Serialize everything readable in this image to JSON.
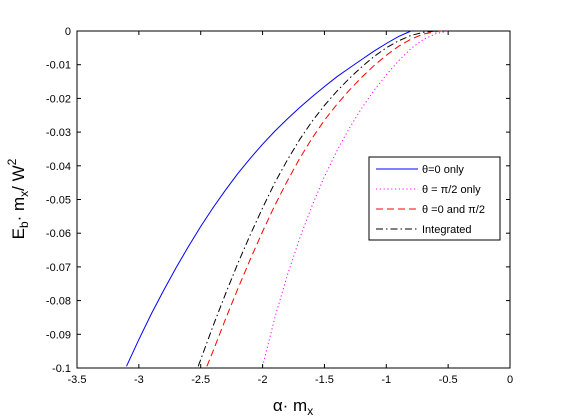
{
  "chart_data": {
    "type": "line",
    "title": "",
    "xlabel": "α· m",
    "xlabel_sub": "x",
    "ylabel": "E",
    "ylabel_sub1": "b",
    "ylabel_mid": "· m",
    "ylabel_sub2": "x",
    "ylabel_end": "/ W",
    "ylabel_sup": "2",
    "xlim": [
      -3.5,
      0
    ],
    "ylim": [
      -0.1,
      0
    ],
    "xticks": [
      -3.5,
      -3,
      -2.5,
      -2,
      -1.5,
      -1,
      -0.5,
      0
    ],
    "xtick_labels": [
      "-3.5",
      "-3",
      "-2.5",
      "-2",
      "-1.5",
      "-1",
      "-0.5",
      "0"
    ],
    "yticks": [
      -0.1,
      -0.09,
      -0.08,
      -0.07,
      -0.06,
      -0.05,
      -0.04,
      -0.03,
      -0.02,
      -0.01,
      0
    ],
    "ytick_labels": [
      "-0.1",
      "-0.09",
      "-0.08",
      "-0.07",
      "-0.06",
      "-0.05",
      "-0.04",
      "-0.03",
      "-0.02",
      "-0.01",
      "0"
    ],
    "grid": false,
    "legend_position": "right",
    "series": [
      {
        "name": "θ=0 only",
        "color": "#0000ff",
        "dash": "solid",
        "x": [
          -3.1,
          -3.0,
          -2.9,
          -2.8,
          -2.7,
          -2.6,
          -2.5,
          -2.4,
          -2.3,
          -2.2,
          -2.1,
          -2.0,
          -1.9,
          -1.8,
          -1.7,
          -1.6,
          -1.5,
          -1.4,
          -1.3,
          -1.2,
          -1.1,
          -1.0,
          -0.9,
          -0.8
        ],
        "y": [
          -0.0995,
          -0.0915,
          -0.084,
          -0.077,
          -0.0703,
          -0.064,
          -0.058,
          -0.0524,
          -0.0472,
          -0.0423,
          -0.0378,
          -0.0336,
          -0.0297,
          -0.0261,
          -0.0227,
          -0.0195,
          -0.0165,
          -0.0136,
          -0.011,
          -0.0085,
          -0.006,
          -0.0037,
          -0.0016,
          0.0
        ]
      },
      {
        "name": "θ = π/2 only",
        "color": "#ff00ff",
        "dash": "dotted",
        "x": [
          -2.0,
          -1.9,
          -1.8,
          -1.7,
          -1.6,
          -1.5,
          -1.4,
          -1.3,
          -1.2,
          -1.1,
          -1.0,
          -0.9,
          -0.8,
          -0.7,
          -0.6,
          -0.5
        ],
        "y": [
          -0.0995,
          -0.085,
          -0.0725,
          -0.0615,
          -0.0518,
          -0.0432,
          -0.0356,
          -0.0289,
          -0.023,
          -0.0177,
          -0.013,
          -0.0088,
          -0.0052,
          -0.0025,
          -0.0008,
          0.0
        ]
      },
      {
        "name": "θ =0 and π/2",
        "color": "#ff0000",
        "dash": "dashed",
        "x": [
          -2.45,
          -2.4,
          -2.3,
          -2.2,
          -2.1,
          -2.0,
          -1.9,
          -1.8,
          -1.7,
          -1.6,
          -1.5,
          -1.4,
          -1.3,
          -1.2,
          -1.1,
          -1.0,
          -0.9,
          -0.8,
          -0.7,
          -0.6,
          -0.55
        ],
        "y": [
          -0.0995,
          -0.095,
          -0.0855,
          -0.0765,
          -0.0678,
          -0.0595,
          -0.0517,
          -0.0445,
          -0.0378,
          -0.0318,
          -0.0265,
          -0.0218,
          -0.0176,
          -0.0138,
          -0.0103,
          -0.0072,
          -0.0045,
          -0.0024,
          -0.0009,
          -0.0002,
          0.0
        ]
      },
      {
        "name": "Integrated",
        "color": "#000000",
        "dash": "dashdot",
        "x": [
          -2.52,
          -2.5,
          -2.4,
          -2.3,
          -2.2,
          -2.1,
          -2.0,
          -1.9,
          -1.8,
          -1.7,
          -1.6,
          -1.5,
          -1.4,
          -1.3,
          -1.2,
          -1.1,
          -1.0,
          -0.9,
          -0.8,
          -0.7,
          -0.6
        ],
        "y": [
          -0.0995,
          -0.0975,
          -0.0875,
          -0.078,
          -0.069,
          -0.0605,
          -0.0525,
          -0.045,
          -0.0383,
          -0.0322,
          -0.0268,
          -0.0221,
          -0.0179,
          -0.0141,
          -0.0107,
          -0.0076,
          -0.005,
          -0.0029,
          -0.0013,
          -0.0004,
          0.0
        ]
      }
    ]
  }
}
